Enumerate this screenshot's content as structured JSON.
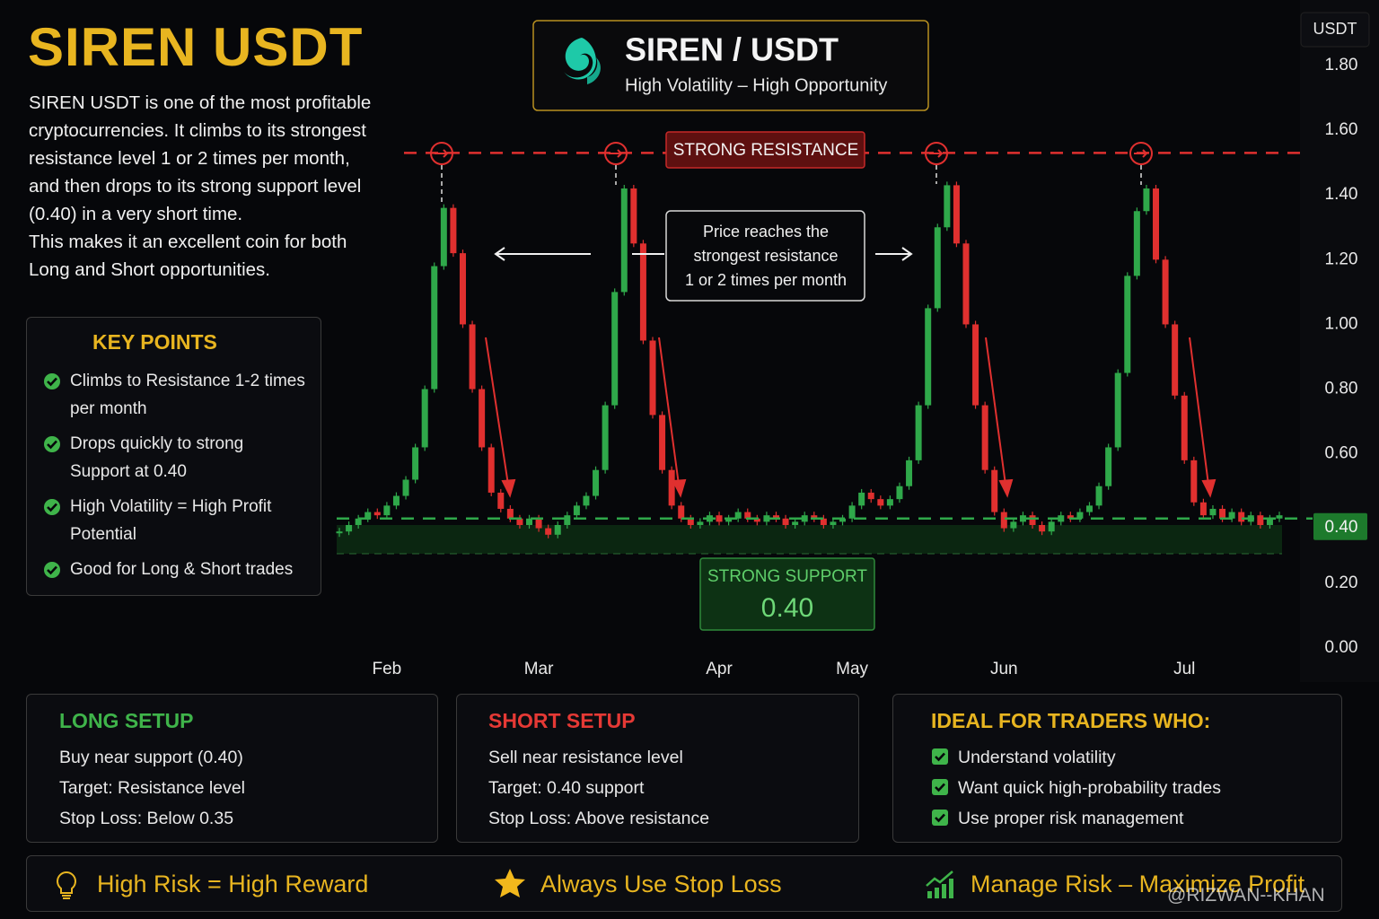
{
  "header": {
    "title": "SIREN USDT",
    "description": [
      "SIREN USDT is one of the most profitable",
      "cryptocurrencies. It climbs to its strongest",
      "resistance level 1 or 2 times per month,",
      "and then drops to its strong support level",
      "(0.40) in a very short time.",
      "This makes it an excellent coin for both",
      "Long and Short opportunities."
    ]
  },
  "badge": {
    "title": "SIREN / USDT",
    "subtitle": "High Volatility – High Opportunity"
  },
  "key_points": {
    "title": "KEY POINTS",
    "items": [
      "Climbs to Resistance 1-2 times per month",
      "Drops quickly to strong Support at 0.40",
      "High Volatility = High Profit Potential",
      "Good for Long & Short trades"
    ]
  },
  "chart_data": {
    "type": "candlestick",
    "unit_label": "USDT",
    "up_color": "#2fa84a",
    "down_color": "#e0302f",
    "values": [
      0.36,
      0.38,
      0.4,
      0.42,
      0.41,
      0.44,
      0.47,
      0.52,
      0.62,
      0.8,
      1.18,
      1.36,
      1.22,
      1.0,
      0.8,
      0.62,
      0.48,
      0.43,
      0.4,
      0.38,
      0.4,
      0.37,
      0.35,
      0.38,
      0.41,
      0.44,
      0.47,
      0.55,
      0.75,
      1.1,
      1.42,
      1.25,
      0.95,
      0.72,
      0.55,
      0.44,
      0.4,
      0.38,
      0.39,
      0.41,
      0.39,
      0.4,
      0.42,
      0.4,
      0.39,
      0.41,
      0.4,
      0.38,
      0.39,
      0.41,
      0.4,
      0.38,
      0.39,
      0.4,
      0.44,
      0.48,
      0.46,
      0.44,
      0.46,
      0.5,
      0.58,
      0.75,
      1.05,
      1.3,
      1.43,
      1.25,
      1.0,
      0.75,
      0.55,
      0.42,
      0.37,
      0.39,
      0.41,
      0.38,
      0.36,
      0.39,
      0.41,
      0.4,
      0.42,
      0.44,
      0.5,
      0.62,
      0.85,
      1.15,
      1.35,
      1.42,
      1.2,
      1.0,
      0.78,
      0.58,
      0.45,
      0.41,
      0.43,
      0.4,
      0.42,
      0.39,
      0.41,
      0.38,
      0.4,
      0.41
    ],
    "xlim": [
      0,
      99
    ],
    "xticks": [
      {
        "value": 5,
        "label": "Feb"
      },
      {
        "value": 21,
        "label": "Mar"
      },
      {
        "value": 40,
        "label": "Apr"
      },
      {
        "value": 54,
        "label": "May"
      },
      {
        "value": 70,
        "label": "Jun"
      },
      {
        "value": 89,
        "label": "Jul"
      }
    ],
    "ylim": [
      0,
      1.8
    ],
    "yticks": [
      {
        "value": 0,
        "label": "0.00"
      },
      {
        "value": 0.2,
        "label": "0.20"
      },
      {
        "value": 0.4,
        "label": "0.40"
      },
      {
        "value": 0.6,
        "label": "0.60"
      },
      {
        "value": 0.8,
        "label": "0.80"
      },
      {
        "value": 1,
        "label": "1.00"
      },
      {
        "value": 1.2,
        "label": "1.20"
      },
      {
        "value": 1.4,
        "label": "1.40"
      },
      {
        "value": 1.6,
        "label": "1.60"
      },
      {
        "value": 1.8,
        "label": "1.80"
      }
    ],
    "resistance": {
      "label": "STRONG RESISTANCE",
      "value": 1.53
    },
    "support": {
      "label": "STRONG SUPPORT",
      "value": 0.4,
      "value_label": "0.40"
    },
    "annotation": [
      "Price reaches the",
      "strongest resistance",
      "1 or 2 times per month"
    ]
  },
  "long_setup": {
    "title": "LONG SETUP",
    "lines": [
      "Buy near support (0.40)",
      "Target: Resistance level",
      "Stop Loss: Below 0.35"
    ]
  },
  "short_setup": {
    "title": "SHORT SETUP",
    "lines": [
      "Sell near resistance level",
      "Target: 0.40 support",
      "Stop Loss: Above resistance"
    ]
  },
  "ideal": {
    "title": "IDEAL FOR TRADERS WHO:",
    "items": [
      "Understand volatility",
      "Want quick high-probability trades",
      "Use proper risk management"
    ]
  },
  "footer": {
    "items": [
      "High Risk = High Reward",
      "Always Use Stop Loss",
      "Manage Risk – Maximize Profit"
    ],
    "watermark": "@RIZWAN--KHAN"
  }
}
